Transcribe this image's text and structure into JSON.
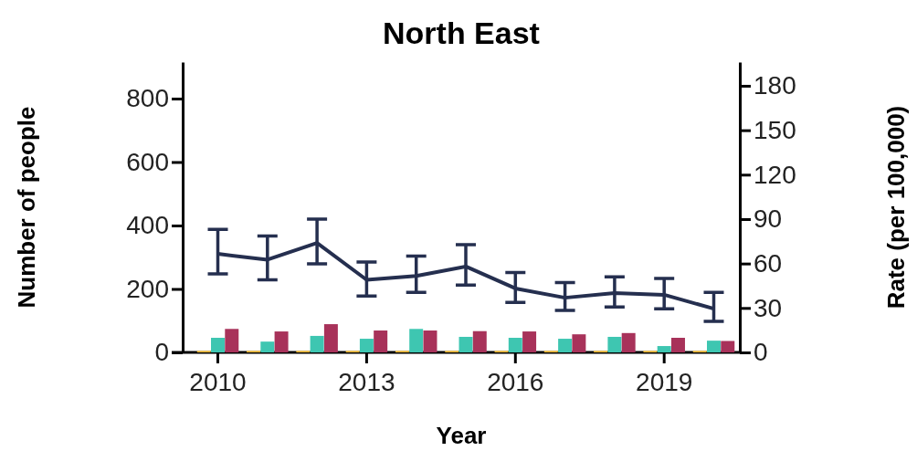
{
  "chart_data": {
    "type": "bar",
    "title": "North East",
    "xlabel": "Year",
    "ylabel": "Number of people",
    "y2label": "Rate (per 100,000)",
    "categories": [
      "2010",
      null,
      null,
      "2013",
      null,
      null,
      "2016",
      null,
      null,
      "2019",
      null
    ],
    "ylim": [
      0,
      915
    ],
    "yticks": [
      0,
      200,
      400,
      600,
      800
    ],
    "y2lim": [
      0,
      196
    ],
    "y2ticks": [
      0,
      30,
      60,
      90,
      120,
      150,
      180
    ],
    "series": [
      {
        "color": "#f5c242",
        "values": [
          5,
          5,
          5,
          5,
          5,
          5,
          5,
          5,
          5,
          5,
          5
        ]
      },
      {
        "color": "#3ec6b1",
        "values": [
          46,
          34,
          52,
          43,
          74,
          49,
          46,
          43,
          49,
          20,
          37
        ]
      },
      {
        "color": "#a8325a",
        "values": [
          74,
          66,
          89,
          69,
          69,
          67,
          66,
          57,
          61,
          46,
          36
        ]
      },
      {
        "type": "line",
        "axis": "y2",
        "color": "#252f4f",
        "values": [
          66.5,
          62.6,
          73.9,
          49,
          51.6,
          58,
          43.2,
          36.9,
          40.1,
          38.9,
          29.5
        ],
        "errors": [
          [
            53,
            83
          ],
          [
            49,
            78.6
          ],
          [
            59.8,
            90
          ],
          [
            38,
            61
          ],
          [
            40.6,
            65
          ],
          [
            45.4,
            72.7
          ],
          [
            33.8,
            54
          ],
          [
            28.4,
            47.2
          ],
          [
            30.7,
            51
          ],
          [
            29.5,
            49.9
          ],
          [
            20.9,
            40.6
          ]
        ]
      }
    ]
  }
}
